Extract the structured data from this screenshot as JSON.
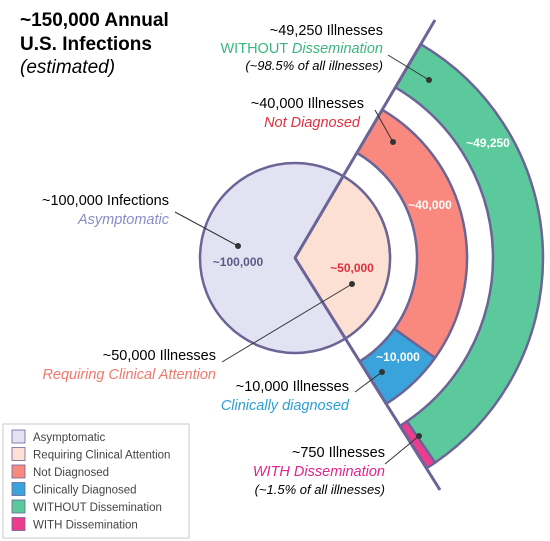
{
  "title": {
    "line1": "~150,000 Annual",
    "line2": "U.S. Infections",
    "line3": "(estimated)"
  },
  "labels": {
    "without_main": "~49,250  Illnesses",
    "without_prefix": "WITHOUT ",
    "without_italic": "Dissemination",
    "without_note": "(~98.5% of all illnesses)",
    "not_diag_main": "~40,000 Illnesses",
    "not_diag_sub": "Not Diagnosed",
    "asym_main": "~100,000 Infections",
    "asym_sub": "Asymptomatic",
    "clinical_main": "~50,000 Illnesses",
    "clinical_sub": "Requiring Clinical Attention",
    "diag_main": "~10,000 Illnesses",
    "diag_sub": "Clinically diagnosed",
    "with_main": "~750 Illnesses",
    "with_sub": "WITH Dissemination",
    "with_note": "(~1.5% of all illnesses)"
  },
  "values": {
    "asymptomatic": "~100,000",
    "clinical": "~50,000",
    "not_diagnosed": "~40,000",
    "diagnosed": "~10,000",
    "without_dissemination": "~49,250"
  },
  "legend": [
    {
      "label": "Asymptomatic",
      "color": "#e2e2f3"
    },
    {
      "label": "Requiring Clinical Attention",
      "color": "#fde0d4"
    },
    {
      "label": "Not Diagnosed",
      "color": "#f9887f"
    },
    {
      "label": "Clinically Diagnosed",
      "color": "#3aa3dc"
    },
    {
      "label": "WITHOUT Dissemination",
      "color": "#5cc99c"
    },
    {
      "label": "WITH Dissemination",
      "color": "#ec3c8e"
    }
  ],
  "colors": {
    "axis": "#6b6497",
    "value_text_dark": "#5b5a85",
    "value_text_red": "#e0303f",
    "green_text": "#3bb57f",
    "red_text": "#e0303f",
    "blue_text": "#2a9fd6",
    "salmon_text": "#f0786c",
    "asym_text": "#8a8cc5",
    "pink_text": "#e0258b"
  }
}
